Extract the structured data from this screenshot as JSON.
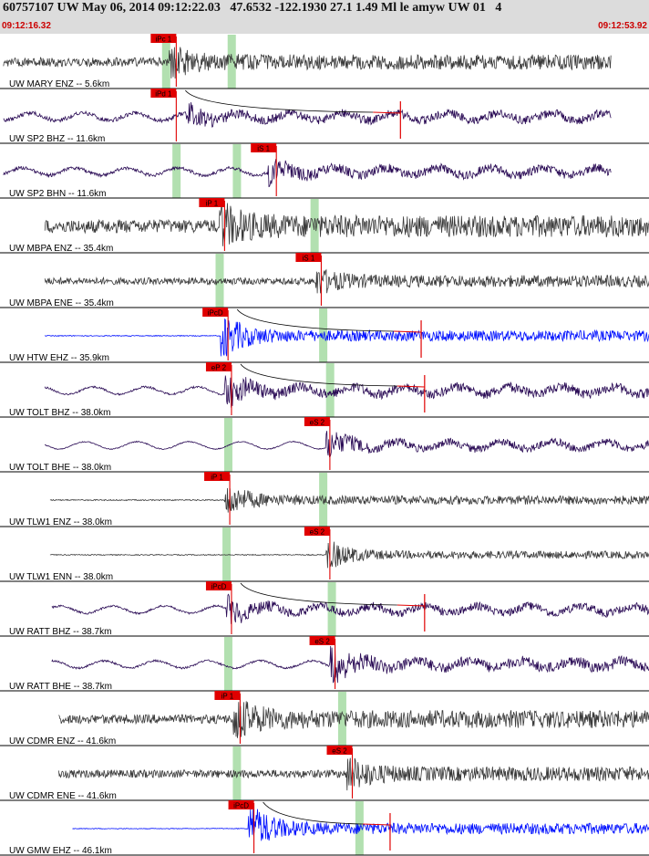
{
  "header": {
    "title": "60757107 UW May 06, 2014 09:12:22.03   47.6532 -122.1930 27.1 1.49 Ml le amyw UW 01   4",
    "start_time": "09:12:16.32",
    "end_time": "09:12:53.92"
  },
  "colors": {
    "header_bg": "#dcdcdc",
    "trace_dark": "#3a3a3a",
    "trace_purple": "#2a0b55",
    "trace_blue": "#0010ff",
    "pick_red": "#e00000",
    "window_green": "#b2e0b0",
    "separator": "#000000"
  },
  "chart_data": {
    "type": "line",
    "title": "60757107 UW May 06, 2014 09:12:22.03   47.6532 -122.1930 27.1 1.49 Ml le amyw UW 01   4",
    "xlabel": "",
    "ylabel": "",
    "x_range": [
      "09:12:16.32",
      "09:12:53.92"
    ],
    "series": [
      {
        "name": "UW MARY ENZ -- 5.6km",
        "color": "dark",
        "x_start": 0.2,
        "x_end": 35.4,
        "amp": 0.55,
        "noise": 0.55,
        "event_t": 9.8,
        "pick": {
          "label": "iPc 1",
          "t": 10.0
        },
        "green": [
          9.6,
          13.4
        ]
      },
      {
        "name": "UW SP2 BHZ -- 11.6km",
        "color": "purple",
        "x_start": 0.2,
        "x_end": 35.4,
        "amp": 0.4,
        "noise": 0.25,
        "event_t": 10.8,
        "pick": {
          "label": "iPd 1",
          "t": 10.0
        },
        "green": [],
        "coda_mark": 23.2
      },
      {
        "name": "UW SP2 BHN -- 11.6km",
        "color": "purple",
        "x_start": 0.2,
        "x_end": 35.4,
        "amp": 0.5,
        "noise": 0.2,
        "event_t": 15.5,
        "pick": {
          "label": "iS 1",
          "t": 15.8
        },
        "green": [
          10.2,
          13.7
        ]
      },
      {
        "name": "UW MBPA ENZ -- 35.4km",
        "color": "dark",
        "x_start": 2.6,
        "x_end": 37.9,
        "amp": 0.8,
        "noise": 0.8,
        "event_t": 12.7,
        "pick": {
          "label": "iP 1",
          "t": 12.8
        },
        "green": [
          18.2
        ]
      },
      {
        "name": "UW MBPA ENE -- 35.4km",
        "color": "dark",
        "x_start": 2.6,
        "x_end": 37.9,
        "amp": 0.45,
        "noise": 0.42,
        "event_t": 18.3,
        "pick": {
          "label": "iS 1",
          "t": 18.4
        },
        "green": [
          12.7
        ]
      },
      {
        "name": "UW HTW EHZ -- 35.9km",
        "color": "blue",
        "x_start": 2.6,
        "x_end": 37.9,
        "amp": 0.9,
        "noise": 0.05,
        "event_t": 12.8,
        "pick": {
          "label": "iPcD",
          "t": 13.0
        },
        "green": [
          18.7
        ],
        "coda_mark": 24.4
      },
      {
        "name": "UW TOLT BHZ -- 38.0km",
        "color": "purple",
        "x_start": 2.6,
        "x_end": 37.9,
        "amp": 0.7,
        "noise": 0.12,
        "event_t": 13.0,
        "pick": {
          "label": "eP 2",
          "t": 13.2
        },
        "green": [
          19.1
        ],
        "coda_mark": 24.6
      },
      {
        "name": "UW TOLT BHE -- 38.0km",
        "color": "purple",
        "x_start": 2.6,
        "x_end": 37.9,
        "amp": 0.6,
        "noise": 0.06,
        "event_t": 18.9,
        "pick": {
          "label": "eS 2",
          "t": 18.9
        },
        "green": [
          13.2
        ]
      },
      {
        "name": "UW TLW1 ENZ -- 38.0km",
        "color": "dark",
        "x_start": 2.9,
        "x_end": 37.9,
        "amp": 0.7,
        "noise": 0.07,
        "event_t": 13.0,
        "pick": {
          "label": "iP 1",
          "t": 13.1
        },
        "green": [
          18.7
        ]
      },
      {
        "name": "UW TLW1 ENN -- 38.0km",
        "color": "dark",
        "x_start": 2.9,
        "x_end": 37.9,
        "amp": 0.6,
        "noise": 0.06,
        "event_t": 18.9,
        "pick": {
          "label": "eS 2",
          "t": 18.9
        },
        "green": [
          13.1
        ]
      },
      {
        "name": "UW RATT BHZ -- 38.7km",
        "color": "purple",
        "x_start": 3.0,
        "x_end": 37.9,
        "amp": 0.55,
        "noise": 0.12,
        "event_t": 13.1,
        "pick": {
          "label": "iPcD",
          "t": 13.2
        },
        "green": [
          19.2
        ],
        "coda_mark": 24.6
      },
      {
        "name": "UW RATT BHE -- 38.7km",
        "color": "purple",
        "x_start": 3.0,
        "x_end": 37.9,
        "amp": 0.8,
        "noise": 0.12,
        "event_t": 19.1,
        "pick": {
          "label": "eS 2",
          "t": 19.2
        },
        "green": [
          13.2
        ]
      },
      {
        "name": "UW CDMR ENZ -- 41.6km",
        "color": "dark",
        "x_start": 3.4,
        "x_end": 37.9,
        "amp": 0.8,
        "noise": 0.55,
        "event_t": 13.5,
        "pick": {
          "label": "iP 1",
          "t": 13.7
        },
        "green": [
          19.8
        ]
      },
      {
        "name": "UW CDMR ENE -- 41.6km",
        "color": "dark",
        "x_start": 3.4,
        "x_end": 37.9,
        "amp": 0.6,
        "noise": 0.48,
        "event_t": 20.1,
        "pick": {
          "label": "eS 2",
          "t": 20.2
        },
        "green": [
          13.7
        ]
      },
      {
        "name": "UW GMW EHZ -- 46.1km",
        "color": "blue",
        "x_start": 4.2,
        "x_end": 37.9,
        "amp": 0.95,
        "noise": 0.04,
        "event_t": 14.4,
        "pick": {
          "label": "iPcD",
          "t": 14.5
        },
        "green": [
          20.8
        ],
        "coda_mark": 22.6
      }
    ]
  }
}
